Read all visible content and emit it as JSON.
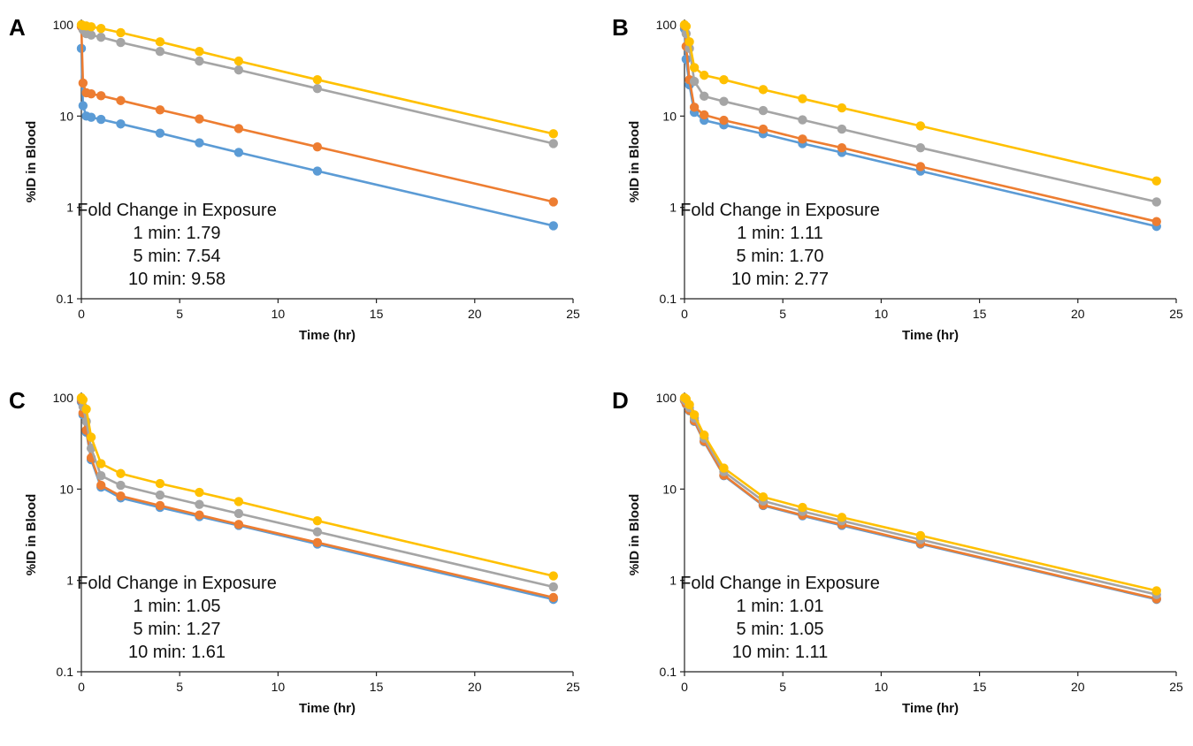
{
  "figure": {
    "colors": {
      "blue": "#5B9BD5",
      "orange": "#ED7D31",
      "gray": "#A5A5A5",
      "yellow": "#FFC000"
    }
  },
  "chart_data": [
    {
      "panel": "A",
      "type": "line",
      "xlabel": "Time (hr)",
      "ylabel": "%ID in Blood",
      "xlim": [
        0,
        25
      ],
      "ylim": [
        0.1,
        100
      ],
      "yscale": "log",
      "xticks": [
        "0",
        "5",
        "10",
        "15",
        "20",
        "25"
      ],
      "yticks": [
        "0.1",
        "1",
        "10",
        "100"
      ],
      "grid": false,
      "annotation": [
        "Fold Change in Exposure",
        "1 min: 1.79",
        "5 min: 7.54",
        "10 min: 9.58"
      ],
      "x": [
        0,
        0.083,
        0.25,
        0.5,
        1,
        2,
        4,
        6,
        8,
        12,
        24
      ],
      "series": [
        {
          "color": "#5B9BD5",
          "values": [
            55,
            13,
            10,
            9.7,
            9.2,
            8.2,
            6.5,
            5.1,
            4.0,
            2.5,
            0.63
          ]
        },
        {
          "color": "#ED7D31",
          "values": [
            95,
            23,
            18,
            17.5,
            16.7,
            14.8,
            11.7,
            9.3,
            7.3,
            4.6,
            1.15
          ]
        },
        {
          "color": "#A5A5A5",
          "values": [
            100,
            88,
            80,
            77,
            73,
            64,
            51,
            40,
            32,
            20,
            5.0
          ]
        },
        {
          "color": "#FFC000",
          "values": [
            100,
            98,
            97,
            95,
            91,
            82,
            65,
            51,
            40,
            25,
            6.4
          ]
        }
      ]
    },
    {
      "panel": "B",
      "type": "line",
      "xlabel": "Time (hr)",
      "ylabel": "%ID in Blood",
      "xlim": [
        0,
        25
      ],
      "ylim": [
        0.1,
        100
      ],
      "yscale": "log",
      "xticks": [
        "0",
        "5",
        "10",
        "15",
        "20",
        "25"
      ],
      "yticks": [
        "0.1",
        "1",
        "10",
        "100"
      ],
      "grid": false,
      "annotation": [
        "Fold Change in Exposure",
        "1 min: 1.11",
        "5 min: 1.70",
        "10 min: 2.77"
      ],
      "x": [
        0,
        0.083,
        0.25,
        0.5,
        1,
        2,
        4,
        6,
        8,
        12,
        24
      ],
      "series": [
        {
          "color": "#5B9BD5",
          "values": [
            90,
            42,
            22,
            11,
            9.0,
            8.0,
            6.4,
            5.0,
            4.0,
            2.5,
            0.62
          ]
        },
        {
          "color": "#ED7D31",
          "values": [
            97,
            58,
            25,
            12.5,
            10.3,
            9.0,
            7.2,
            5.6,
            4.5,
            2.8,
            0.7
          ]
        },
        {
          "color": "#A5A5A5",
          "values": [
            99,
            80,
            55,
            24,
            16.5,
            14.5,
            11.5,
            9.1,
            7.2,
            4.5,
            1.15
          ]
        },
        {
          "color": "#FFC000",
          "values": [
            100,
            96,
            65,
            34,
            28,
            25,
            19.5,
            15.5,
            12.3,
            7.8,
            1.95
          ]
        }
      ]
    },
    {
      "panel": "C",
      "type": "line",
      "xlabel": "Time (hr)",
      "ylabel": "%ID in Blood",
      "xlim": [
        0,
        25
      ],
      "ylim": [
        0.1,
        100
      ],
      "yscale": "log",
      "xticks": [
        "0",
        "5",
        "10",
        "15",
        "20",
        "25"
      ],
      "yticks": [
        "0.1",
        "1",
        "10",
        "100"
      ],
      "grid": false,
      "annotation": [
        "Fold Change in Exposure",
        "1 min: 1.05",
        "5 min: 1.27",
        "10 min: 1.61"
      ],
      "x": [
        0,
        0.083,
        0.25,
        0.5,
        1,
        2,
        4,
        6,
        8,
        12,
        24
      ],
      "series": [
        {
          "color": "#5B9BD5",
          "values": [
            90,
            65,
            42,
            21,
            10.5,
            8.0,
            6.3,
            5.0,
            4.0,
            2.5,
            0.62
          ]
        },
        {
          "color": "#ED7D31",
          "values": [
            94,
            68,
            44,
            22,
            11,
            8.4,
            6.6,
            5.2,
            4.1,
            2.6,
            0.65
          ]
        },
        {
          "color": "#A5A5A5",
          "values": [
            98,
            80,
            55,
            28,
            14,
            11,
            8.6,
            6.8,
            5.4,
            3.4,
            0.85
          ]
        },
        {
          "color": "#FFC000",
          "values": [
            100,
            95,
            75,
            37,
            19,
            14.8,
            11.5,
            9.2,
            7.3,
            4.5,
            1.12
          ]
        }
      ]
    },
    {
      "panel": "D",
      "type": "line",
      "xlabel": "Time (hr)",
      "ylabel": "%ID in Blood",
      "xlim": [
        0,
        25
      ],
      "ylim": [
        0.1,
        100
      ],
      "yscale": "log",
      "xticks": [
        "0",
        "5",
        "10",
        "15",
        "20",
        "25"
      ],
      "yticks": [
        "0.1",
        "1",
        "10",
        "100"
      ],
      "grid": false,
      "annotation": [
        "Fold Change in Exposure",
        "1 min: 1.01",
        "5 min: 1.05",
        "10 min: 1.11"
      ],
      "x": [
        0,
        0.083,
        0.25,
        0.5,
        1,
        2,
        4,
        6,
        8,
        12,
        24
      ],
      "series": [
        {
          "color": "#5B9BD5",
          "values": [
            93,
            85,
            72,
            55,
            33,
            14,
            6.6,
            5.1,
            4.0,
            2.5,
            0.62
          ]
        },
        {
          "color": "#ED7D31",
          "values": [
            94,
            86,
            73,
            56,
            33.5,
            14.2,
            6.7,
            5.2,
            4.1,
            2.55,
            0.63
          ]
        },
        {
          "color": "#A5A5A5",
          "values": [
            97,
            92,
            78,
            60,
            36,
            15.5,
            7.4,
            5.7,
            4.5,
            2.8,
            0.7
          ]
        },
        {
          "color": "#FFC000",
          "values": [
            100,
            97,
            84,
            65,
            39,
            17,
            8.2,
            6.3,
            4.9,
            3.1,
            0.77
          ]
        }
      ]
    }
  ]
}
